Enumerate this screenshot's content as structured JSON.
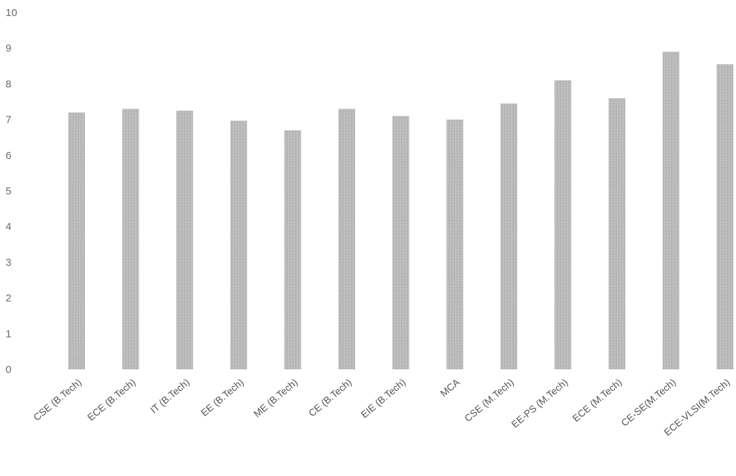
{
  "chart_data": {
    "type": "bar",
    "categories": [
      "CSE (B.Tech)",
      "ECE (B.Tech)",
      "IT  (B.Tech)",
      "EE (B.Tech)",
      "ME (B.Tech)",
      "CE (B.Tech)",
      "EIE (B.Tech)",
      "MCA",
      "CSE (M.Tech)",
      "EE-PS (M.Tech)",
      "ECE (M.Tech)",
      "CE-SE(M.Tech)",
      "ECE-VLSI(M.Tech)"
    ],
    "values": [
      7.2,
      7.3,
      7.25,
      6.97,
      6.7,
      7.3,
      7.1,
      7.0,
      7.45,
      8.1,
      7.6,
      8.9,
      8.55
    ],
    "yticks": [
      "0",
      "1",
      "2",
      "3",
      "4",
      "5",
      "6",
      "7",
      "8",
      "9",
      "10"
    ],
    "ylim": [
      0,
      10
    ],
    "title": "",
    "xlabel": "",
    "ylabel": "",
    "grid": false,
    "bar_color": "#b4b4b4"
  }
}
